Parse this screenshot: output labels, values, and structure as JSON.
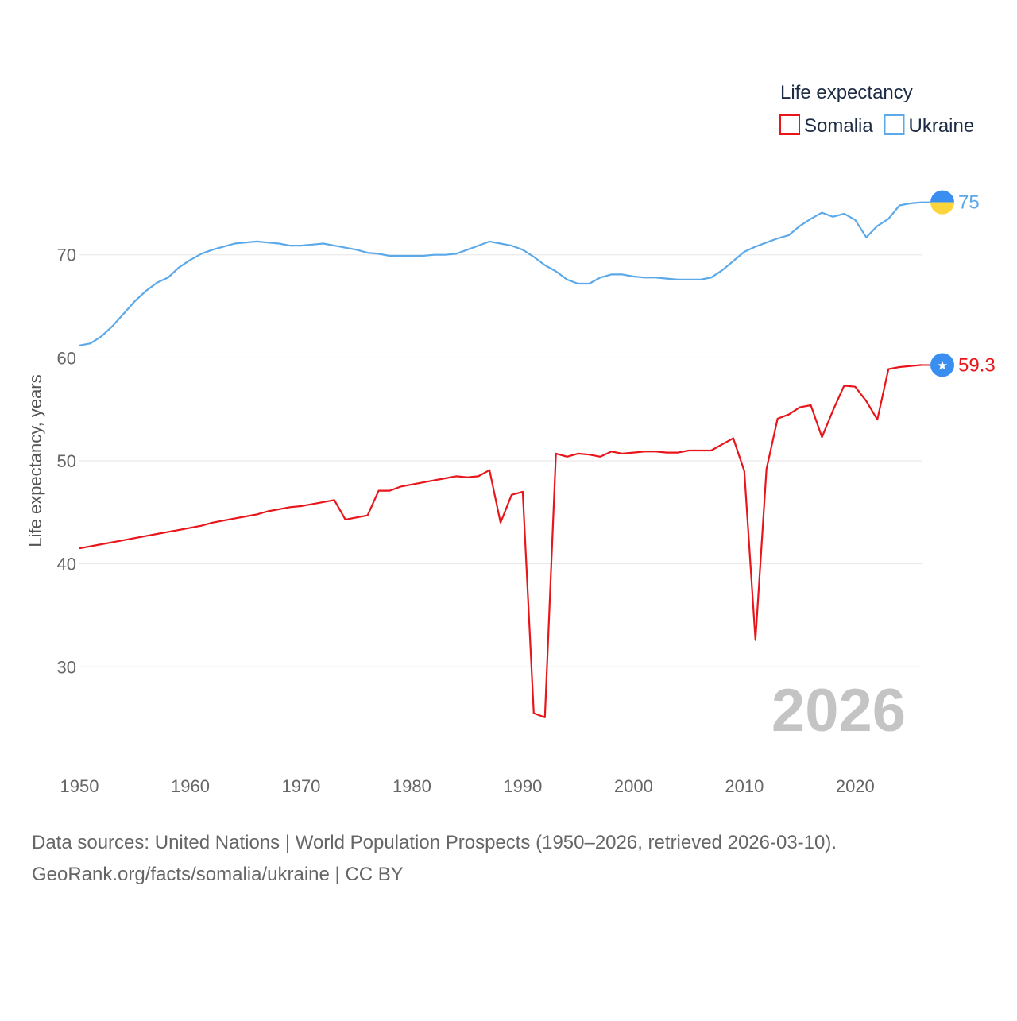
{
  "chart_data": {
    "type": "line",
    "title": "Life expectancy",
    "xlabel": "",
    "ylabel": "Life expectancy, years",
    "xlim": [
      1950,
      2026
    ],
    "ylim": [
      23,
      77
    ],
    "x_ticks": [
      1950,
      1960,
      1970,
      1980,
      1990,
      2000,
      2010,
      2020
    ],
    "y_ticks": [
      30,
      40,
      50,
      60,
      70
    ],
    "grid": true,
    "legend_position": "top-right",
    "current_year_label": "2026",
    "x": [
      1950,
      1951,
      1952,
      1953,
      1954,
      1955,
      1956,
      1957,
      1958,
      1959,
      1960,
      1961,
      1962,
      1963,
      1964,
      1965,
      1966,
      1967,
      1968,
      1969,
      1970,
      1971,
      1972,
      1973,
      1974,
      1975,
      1976,
      1977,
      1978,
      1979,
      1980,
      1981,
      1982,
      1983,
      1984,
      1985,
      1986,
      1987,
      1988,
      1989,
      1990,
      1991,
      1992,
      1993,
      1994,
      1995,
      1996,
      1997,
      1998,
      1999,
      2000,
      2001,
      2002,
      2003,
      2004,
      2005,
      2006,
      2007,
      2008,
      2009,
      2010,
      2011,
      2012,
      2013,
      2014,
      2015,
      2016,
      2017,
      2018,
      2019,
      2020,
      2021,
      2022,
      2023,
      2024,
      2025,
      2026
    ],
    "series": [
      {
        "name": "Somalia",
        "color": "#e8151b",
        "end_label": "59.3",
        "marker_icon": "somalia-flag-icon",
        "values": [
          41.5,
          41.7,
          41.9,
          42.1,
          42.3,
          42.5,
          42.7,
          42.9,
          43.1,
          43.3,
          43.5,
          43.7,
          44.0,
          44.2,
          44.4,
          44.6,
          44.8,
          45.1,
          45.3,
          45.5,
          45.6,
          45.8,
          46.0,
          46.2,
          44.3,
          44.5,
          44.7,
          47.1,
          47.1,
          47.5,
          47.7,
          47.9,
          48.1,
          48.3,
          48.5,
          48.4,
          48.5,
          49.1,
          44.0,
          46.7,
          47.0,
          25.5,
          25.1,
          50.7,
          50.4,
          50.7,
          50.6,
          50.4,
          50.9,
          50.7,
          50.8,
          50.9,
          50.9,
          50.8,
          50.8,
          51.0,
          51.0,
          51.0,
          51.6,
          52.2,
          49.0,
          32.6,
          49.2,
          54.1,
          54.5,
          55.2,
          55.4,
          52.3,
          54.9,
          57.3,
          57.2,
          55.8,
          54.0,
          58.9,
          59.1,
          59.2,
          59.3
        ]
      },
      {
        "name": "Ukraine",
        "color": "#5ca9ea",
        "end_label": "75",
        "marker_icon": "ukraine-flag-icon",
        "values": [
          61.2,
          61.4,
          62.1,
          63.1,
          64.3,
          65.5,
          66.5,
          67.3,
          67.8,
          68.8,
          69.5,
          70.1,
          70.5,
          70.8,
          71.1,
          71.2,
          71.3,
          71.2,
          71.1,
          70.9,
          70.9,
          71.0,
          71.1,
          70.9,
          70.7,
          70.5,
          70.2,
          70.1,
          69.9,
          69.9,
          69.9,
          69.9,
          70.0,
          70.0,
          70.1,
          70.5,
          70.9,
          71.3,
          71.1,
          70.9,
          70.5,
          69.8,
          69.0,
          68.4,
          67.6,
          67.2,
          67.2,
          67.8,
          68.1,
          68.1,
          67.9,
          67.8,
          67.8,
          67.7,
          67.6,
          67.6,
          67.6,
          67.8,
          68.5,
          69.4,
          70.3,
          70.8,
          71.2,
          71.6,
          71.9,
          72.8,
          73.5,
          74.1,
          73.7,
          74.0,
          73.4,
          71.7,
          72.8,
          73.5,
          74.8,
          75.0,
          75.1
        ]
      }
    ]
  },
  "footer": {
    "source_line": "Data sources: United Nations | World Population Prospects (1950–2026, retrieved 2026-03-10).",
    "credit_line": "GeoRank.org/facts/somalia/ukraine | CC BY"
  }
}
